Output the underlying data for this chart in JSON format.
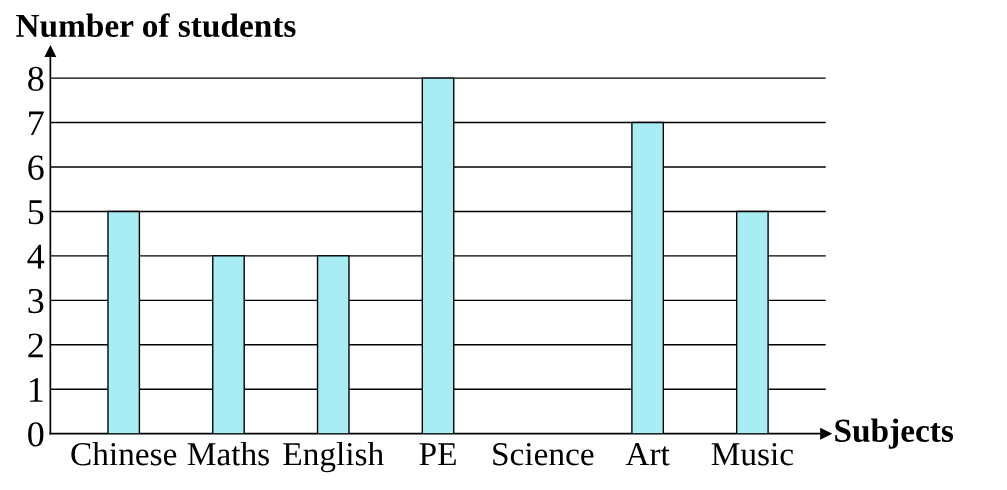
{
  "chart_data": {
    "type": "bar",
    "ylabel": "Number of students",
    "xlabel": "Subjects",
    "categories": [
      "Chinese",
      "Maths",
      "English",
      "PE",
      "Science",
      "Art",
      "Music"
    ],
    "values": [
      5,
      4,
      4,
      8,
      0,
      7,
      5
    ],
    "color": "#a8ecf4",
    "ylim": [
      0,
      8.6
    ],
    "yticks": [
      0,
      1,
      2,
      3,
      4,
      5,
      6,
      7,
      8
    ],
    "grid": "y",
    "legend": false
  }
}
